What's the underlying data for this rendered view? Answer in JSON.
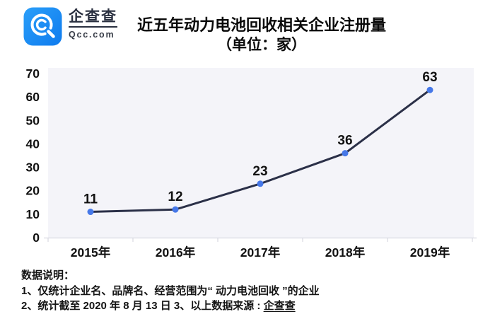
{
  "header": {
    "logo": {
      "name": "企查查",
      "domain": "Qcc.com",
      "brand_color": "#1688f2"
    },
    "title": "近五年动力电池回收相关企业注册量",
    "subtitle": "（单位：家）"
  },
  "chart_data": {
    "type": "line",
    "title": "近五年动力电池回收相关企业注册量",
    "subtitle": "（单位：家）",
    "categories": [
      "2015年",
      "2016年",
      "2017年",
      "2018年",
      "2019年"
    ],
    "values": [
      11,
      12,
      23,
      36,
      63
    ],
    "data_labels": [
      "11",
      "12",
      "23",
      "36",
      "63"
    ],
    "xlabel": "",
    "ylabel": "",
    "ylim": [
      0,
      70
    ],
    "yticks": [
      0,
      10,
      20,
      30,
      40,
      50,
      60,
      70
    ],
    "grid": false,
    "legend": "none",
    "line_color": "#2b3048",
    "marker_color": "#4678e8",
    "plot_bg": "#f4f4f9",
    "axis_color": "#d8d9e1",
    "text_color": "#111111"
  },
  "footer": {
    "heading": "数据说明：",
    "note1": "1、仅统计企业名、品牌名、经营范围为“ 动力电池回收 ”的企业",
    "note2_prefix": "2、统计截至 2020 年 8 月 13 日  3、以上数据来源 : ",
    "note2_source": "企查查"
  }
}
